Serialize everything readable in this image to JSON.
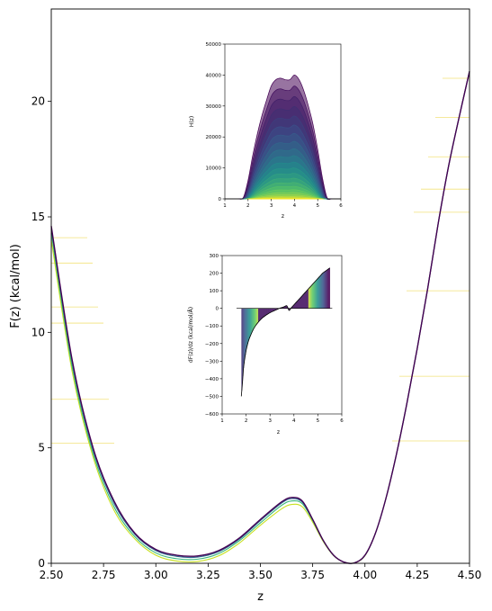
{
  "chart_data": [
    {
      "type": "line",
      "role": "main",
      "xlabel": "z",
      "ylabel": "F(z) (kcal/mol)",
      "xlim": [
        2.5,
        4.5
      ],
      "ylim": [
        0,
        24
      ],
      "xticks": [
        2.5,
        2.75,
        3.0,
        3.25,
        3.5,
        3.75,
        4.0,
        4.25,
        4.5
      ],
      "xtick_labels": [
        "2.50",
        "2.75",
        "3.00",
        "3.25",
        "3.50",
        "3.75",
        "4.00",
        "4.25",
        "4.50"
      ],
      "yticks": [
        0,
        5,
        10,
        15,
        20
      ],
      "ytick_labels": [
        "0",
        "5",
        "10",
        "15",
        "20"
      ],
      "grid": false,
      "colormap": "viridis",
      "x": [
        2.5,
        2.6,
        2.7,
        2.8,
        2.9,
        3.0,
        3.1,
        3.2,
        3.3,
        3.4,
        3.5,
        3.6,
        3.65,
        3.7,
        3.75,
        3.8,
        3.85,
        3.9,
        3.95,
        4.0,
        4.05,
        4.1,
        4.15,
        4.2,
        4.25,
        4.3,
        4.35,
        4.4,
        4.45,
        4.5
      ],
      "series": [
        {
          "color": "#440154",
          "values": [
            14.6,
            8.8,
            5.0,
            2.7,
            1.3,
            0.6,
            0.35,
            0.32,
            0.55,
            1.1,
            1.9,
            2.65,
            2.85,
            2.7,
            1.9,
            1.0,
            0.35,
            0.05,
            0.02,
            0.35,
            1.3,
            2.8,
            4.7,
            6.9,
            9.3,
            11.9,
            14.7,
            17.2,
            19.3,
            21.3
          ]
        },
        {
          "color": "#31688e",
          "values": [
            14.5,
            8.7,
            4.9,
            2.6,
            1.25,
            0.55,
            0.3,
            0.27,
            0.5,
            1.05,
            1.85,
            2.6,
            2.8,
            2.65,
            1.9,
            1.0,
            0.35,
            0.05,
            0.02,
            0.35,
            1.3,
            2.8,
            4.7,
            6.9,
            9.3,
            11.9,
            14.7,
            17.2,
            19.3,
            21.3
          ]
        },
        {
          "color": "#35b779",
          "values": [
            14.3,
            8.5,
            4.75,
            2.45,
            1.15,
            0.45,
            0.2,
            0.18,
            0.42,
            0.98,
            1.75,
            2.5,
            2.7,
            2.58,
            1.85,
            0.98,
            0.34,
            0.05,
            0.02,
            0.34,
            1.3,
            2.8,
            4.7,
            6.9,
            9.3,
            11.9,
            14.7,
            17.2,
            19.3,
            21.3
          ]
        },
        {
          "color": "#c8e020",
          "values": [
            14.0,
            8.3,
            4.6,
            2.3,
            1.05,
            0.35,
            0.1,
            0.08,
            0.32,
            0.88,
            1.65,
            2.35,
            2.55,
            2.45,
            1.78,
            0.95,
            0.33,
            0.05,
            0.02,
            0.33,
            1.3,
            2.8,
            4.7,
            6.9,
            9.3,
            11.9,
            14.7,
            17.2,
            19.3,
            21.3
          ]
        }
      ],
      "faint_levels_left": [
        14.1,
        13.0,
        11.1,
        10.4,
        7.1,
        5.2
      ],
      "faint_levels_right": [
        21.0,
        19.3,
        17.6,
        16.2,
        15.2,
        11.8,
        8.1,
        5.3
      ]
    },
    {
      "type": "area",
      "role": "inset-histogram",
      "xlabel": "z",
      "ylabel": "H(z)",
      "xlim": [
        1,
        6
      ],
      "ylim": [
        0,
        50000
      ],
      "xticks": [
        "1",
        "2",
        "3",
        "4",
        "5",
        "6"
      ],
      "yticks": [
        "0",
        "10000",
        "20000",
        "30000",
        "40000",
        "50000"
      ],
      "x": [
        1.6,
        1.8,
        2.0,
        2.2,
        2.4,
        2.6,
        2.8,
        3.0,
        3.2,
        3.4,
        3.6,
        3.8,
        4.0,
        4.2,
        4.4,
        4.6,
        4.8,
        5.0,
        5.2,
        5.4,
        5.6
      ],
      "envelope": [
        0,
        500,
        6000,
        14000,
        21000,
        27000,
        32000,
        36500,
        38500,
        39000,
        38500,
        38500,
        40000,
        38500,
        35000,
        30000,
        24000,
        16000,
        7000,
        500,
        0
      ],
      "n_curves": 22
    },
    {
      "type": "line",
      "role": "inset-derivative",
      "xlabel": "z",
      "ylabel": "dF(z)/dz (kcal/mol/Å)",
      "xlim": [
        1,
        6
      ],
      "ylim": [
        -600,
        300
      ],
      "xticks": [
        "1",
        "2",
        "3",
        "4",
        "5",
        "6"
      ],
      "yticks": [
        "300",
        "200",
        "100",
        "0",
        "−100",
        "−200",
        "−300",
        "−400",
        "−500",
        "−600"
      ],
      "x": [
        1.8,
        1.85,
        1.9,
        2.0,
        2.1,
        2.2,
        2.3,
        2.4,
        2.5,
        2.6,
        2.7,
        2.8,
        2.9,
        3.0,
        3.1,
        3.2,
        3.3,
        3.4,
        3.5,
        3.6,
        3.7,
        3.75,
        3.8,
        3.9,
        4.0,
        4.1,
        4.2,
        4.3,
        4.4,
        4.5,
        4.6,
        4.7,
        4.8,
        4.9,
        5.0,
        5.1,
        5.2,
        5.3,
        5.4,
        5.5
      ],
      "values": [
        -500,
        -420,
        -330,
        -240,
        -185,
        -150,
        -120,
        -98,
        -80,
        -65,
        -52,
        -42,
        -33,
        -25,
        -18,
        -12,
        -6,
        0,
        5,
        10,
        15,
        2,
        -12,
        5,
        20,
        35,
        50,
        65,
        80,
        95,
        110,
        125,
        140,
        155,
        170,
        185,
        200,
        210,
        220,
        230
      ],
      "zero_start": 1.6,
      "zero_end": 5.6
    }
  ]
}
